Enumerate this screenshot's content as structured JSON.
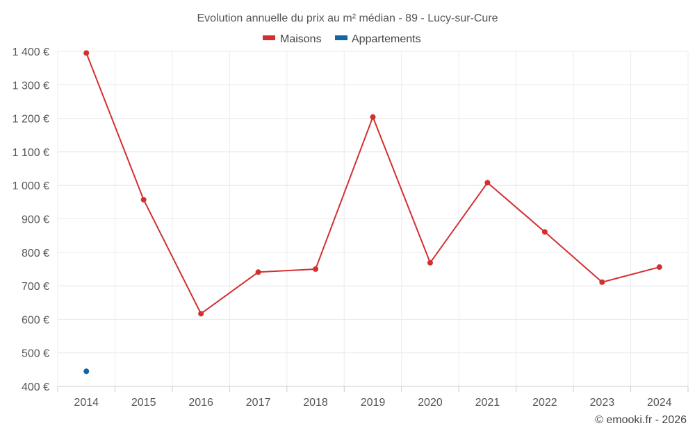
{
  "chart_data": {
    "type": "line",
    "title": "Evolution annuelle du prix au m² médian - 89 - Lucy-sur-Cure",
    "xlabel": "",
    "ylabel": "",
    "categories": [
      "2014",
      "2015",
      "2016",
      "2017",
      "2018",
      "2019",
      "2020",
      "2021",
      "2022",
      "2023",
      "2024"
    ],
    "ylim": [
      400,
      1400
    ],
    "yticks": [
      400,
      500,
      600,
      700,
      800,
      900,
      1000,
      1100,
      1200,
      1300,
      1400
    ],
    "ytick_labels": [
      "400 €",
      "500 €",
      "600 €",
      "700 €",
      "800 €",
      "900 €",
      "1 000 €",
      "1 100 €",
      "1 200 €",
      "1 300 €",
      "1 400 €"
    ],
    "grid": true,
    "legend_position": "top-center",
    "series": [
      {
        "name": "Maisons",
        "color": "#d32f2f",
        "values": [
          1395,
          957,
          617,
          741,
          750,
          1204,
          769,
          1008,
          861,
          711,
          756
        ]
      },
      {
        "name": "Appartements",
        "color": "#1565a0",
        "values": [
          445,
          null,
          null,
          null,
          null,
          null,
          null,
          null,
          null,
          null,
          null
        ]
      }
    ],
    "credit": "© emooki.fr - 2026"
  }
}
